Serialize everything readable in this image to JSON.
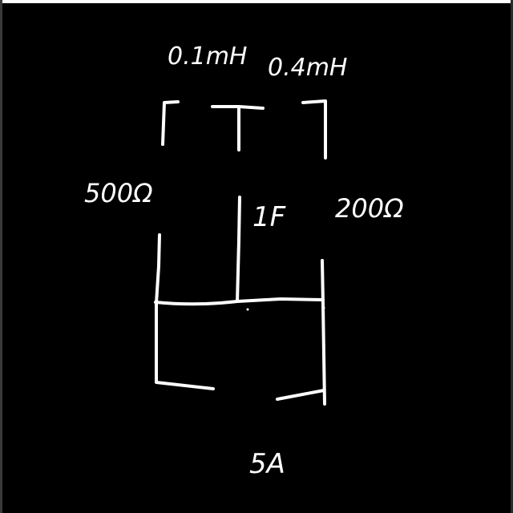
{
  "diagram": {
    "labels": {
      "inductor_left": "0.1mH",
      "inductor_right": "0.4mH",
      "resistor_left": "500Ω",
      "capacitor": "1F",
      "resistor_right": "200Ω",
      "current_source": "5A"
    }
  },
  "colors": {
    "background": "#000000",
    "ink": "#ffffff"
  }
}
